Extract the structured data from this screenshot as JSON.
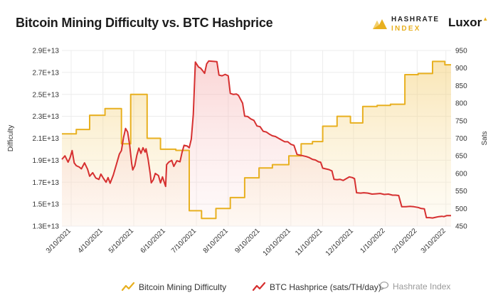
{
  "header": {
    "title": "Bitcoin Mining Difficulty vs. BTC Hashprice",
    "logo_hashrate_line1": "HASHRATE",
    "logo_hashrate_line2": "INDEX",
    "logo_luxor": "Luxor"
  },
  "watermark": "Hashrate Index",
  "chart_data": {
    "type": "line",
    "grid": true,
    "legend_position": "bottom",
    "x_tick_labels": [
      "3/10/2021",
      "4/10/2021",
      "5/10/2021",
      "6/10/2021",
      "7/10/2021",
      "8/10/2021",
      "9/10/2021",
      "10/10/2021",
      "11/10/2021",
      "12/10/2021",
      "1/10/2022",
      "2/10/2022",
      "3/10/2022"
    ],
    "y_left": {
      "label": "Difficulty",
      "ticks": [
        "1.3E+13",
        "1.5E+13",
        "1.7E+13",
        "1.9E+13",
        "2.1E+13",
        "2.3E+13",
        "2.5E+13",
        "2.7E+13",
        "2.9E+13"
      ],
      "range": [
        13000000000000.0,
        29000000000000.0
      ]
    },
    "y_right": {
      "label": "Sats",
      "ticks": [
        "450",
        "500",
        "550",
        "600",
        "650",
        "700",
        "750",
        "800",
        "850",
        "900",
        "950"
      ],
      "range": [
        450,
        950
      ]
    },
    "series": [
      {
        "name": "Bitcoin Mining Difficulty",
        "axis": "left",
        "color": "#e8b020",
        "step": true,
        "points": [
          [
            "3/1/2021",
            21400000000000.0
          ],
          [
            "3/10/2021",
            21400000000000.0
          ],
          [
            "3/15/2021",
            21800000000000.0
          ],
          [
            "3/28/2021",
            23100000000000.0
          ],
          [
            "4/12/2021",
            23700000000000.0
          ],
          [
            "4/28/2021",
            20500000000000.0
          ],
          [
            "5/7/2021",
            25000000000000.0
          ],
          [
            "5/23/2021",
            21000000000000.0
          ],
          [
            "6/5/2021",
            20000000000000.0
          ],
          [
            "6/20/2021",
            19900000000000.0
          ],
          [
            "7/3/2021",
            14400000000000.0
          ],
          [
            "7/15/2021",
            13700000000000.0
          ],
          [
            "7/29/2021",
            14600000000000.0
          ],
          [
            "8/12/2021",
            15600000000000.0
          ],
          [
            "8/26/2021",
            17400000000000.0
          ],
          [
            "9/9/2021",
            18300000000000.0
          ],
          [
            "9/22/2021",
            18600000000000.0
          ],
          [
            "10/8/2021",
            19400000000000.0
          ],
          [
            "10/20/2021",
            20500000000000.0
          ],
          [
            "10/31/2021",
            20700000000000.0
          ],
          [
            "11/10/2021",
            22100000000000.0
          ],
          [
            "11/24/2021",
            23000000000000.0
          ],
          [
            "12/7/2021",
            22400000000000.0
          ],
          [
            "12/19/2021",
            23900000000000.0
          ],
          [
            "1/2/2022",
            24000000000000.0
          ],
          [
            "1/15/2022",
            24100000000000.0
          ],
          [
            "1/29/2022",
            26800000000000.0
          ],
          [
            "2/11/2022",
            26900000000000.0
          ],
          [
            "2/25/2022",
            28000000000000.0
          ],
          [
            "3/9/2022",
            27700000000000.0
          ],
          [
            "3/15/2022",
            27700000000000.0
          ]
        ]
      },
      {
        "name": "BTC Hashprice (sats/TH/day)",
        "axis": "right",
        "color": "#d63030",
        "step": false,
        "points": [
          [
            "3/1/2021",
            640
          ],
          [
            "3/4/2021",
            650
          ],
          [
            "3/7/2021",
            632
          ],
          [
            "3/9/2021",
            645
          ],
          [
            "3/11/2021",
            665
          ],
          [
            "3/13/2021",
            630
          ],
          [
            "3/15/2021",
            622
          ],
          [
            "3/18/2021",
            618
          ],
          [
            "3/20/2021",
            613
          ],
          [
            "3/23/2021",
            630
          ],
          [
            "3/26/2021",
            612
          ],
          [
            "3/28/2021",
            592
          ],
          [
            "3/31/2021",
            602
          ],
          [
            "4/3/2021",
            587
          ],
          [
            "4/6/2021",
            583
          ],
          [
            "4/8/2021",
            598
          ],
          [
            "4/10/2021",
            588
          ],
          [
            "4/13/2021",
            575
          ],
          [
            "4/15/2021",
            588
          ],
          [
            "4/17/2021",
            572
          ],
          [
            "4/20/2021",
            595
          ],
          [
            "4/23/2021",
            625
          ],
          [
            "4/26/2021",
            655
          ],
          [
            "4/28/2021",
            665
          ],
          [
            "4/30/2021",
            702
          ],
          [
            "5/2/2021",
            728
          ],
          [
            "5/4/2021",
            718
          ],
          [
            "5/6/2021",
            680
          ],
          [
            "5/8/2021",
            628
          ],
          [
            "5/9/2021",
            610
          ],
          [
            "5/11/2021",
            622
          ],
          [
            "5/13/2021",
            652
          ],
          [
            "5/15/2021",
            672
          ],
          [
            "5/17/2021",
            657
          ],
          [
            "5/19/2021",
            673
          ],
          [
            "5/21/2021",
            661
          ],
          [
            "5/22/2021",
            670
          ],
          [
            "5/24/2021",
            640
          ],
          [
            "5/26/2021",
            600
          ],
          [
            "5/27/2021",
            573
          ],
          [
            "5/29/2021",
            582
          ],
          [
            "5/31/2021",
            600
          ],
          [
            "6/3/2021",
            594
          ],
          [
            "6/5/2021",
            573
          ],
          [
            "6/7/2021",
            590
          ],
          [
            "6/10/2021",
            563
          ],
          [
            "6/11/2021",
            625
          ],
          [
            "6/13/2021",
            632
          ],
          [
            "6/16/2021",
            637
          ],
          [
            "6/18/2021",
            620
          ],
          [
            "6/21/2021",
            636
          ],
          [
            "6/24/2021",
            633
          ],
          [
            "6/26/2021",
            660
          ],
          [
            "6/28/2021",
            680
          ],
          [
            "7/1/2021",
            678
          ],
          [
            "7/3/2021",
            673
          ],
          [
            "7/5/2021",
            698
          ],
          [
            "7/7/2021",
            768
          ],
          [
            "7/9/2021",
            917
          ],
          [
            "7/12/2021",
            903
          ],
          [
            "7/14/2021",
            900
          ],
          [
            "7/16/2021",
            893
          ],
          [
            "7/18/2021",
            885
          ],
          [
            "7/20/2021",
            912
          ],
          [
            "7/22/2021",
            920
          ],
          [
            "7/26/2021",
            919
          ],
          [
            "7/30/2021",
            918
          ],
          [
            "8/1/2021",
            880
          ],
          [
            "8/4/2021",
            878
          ],
          [
            "8/7/2021",
            882
          ],
          [
            "8/10/2021",
            878
          ],
          [
            "8/12/2021",
            828
          ],
          [
            "8/15/2021",
            825
          ],
          [
            "8/18/2021",
            826
          ],
          [
            "8/20/2021",
            822
          ],
          [
            "8/24/2021",
            800
          ],
          [
            "8/26/2021",
            763
          ],
          [
            "8/29/2021",
            762
          ],
          [
            "9/1/2021",
            755
          ],
          [
            "9/4/2021",
            751
          ],
          [
            "9/7/2021",
            735
          ],
          [
            "9/10/2021",
            733
          ],
          [
            "9/13/2021",
            720
          ],
          [
            "9/16/2021",
            718
          ],
          [
            "9/19/2021",
            712
          ],
          [
            "9/22/2021",
            707
          ],
          [
            "9/25/2021",
            705
          ],
          [
            "9/28/2021",
            700
          ],
          [
            "10/1/2021",
            695
          ],
          [
            "10/4/2021",
            690
          ],
          [
            "10/7/2021",
            690
          ],
          [
            "10/10/2021",
            683
          ],
          [
            "10/13/2021",
            680
          ],
          [
            "10/16/2021",
            654
          ],
          [
            "10/19/2021",
            652
          ],
          [
            "10/22/2021",
            650
          ],
          [
            "10/25/2021",
            648
          ],
          [
            "10/28/2021",
            645
          ],
          [
            "10/31/2021",
            640
          ],
          [
            "11/3/2021",
            638
          ],
          [
            "11/6/2021",
            633
          ],
          [
            "11/8/2021",
            632
          ],
          [
            "11/10/2021",
            615
          ],
          [
            "11/13/2021",
            613
          ],
          [
            "11/16/2021",
            611
          ],
          [
            "11/19/2021",
            607
          ],
          [
            "11/21/2021",
            583
          ],
          [
            "11/24/2021",
            582
          ],
          [
            "11/27/2021",
            583
          ],
          [
            "11/30/2021",
            580
          ],
          [
            "12/3/2021",
            585
          ],
          [
            "12/6/2021",
            590
          ],
          [
            "12/9/2021",
            588
          ],
          [
            "12/11/2021",
            585
          ],
          [
            "12/13/2021",
            545
          ],
          [
            "12/17/2021",
            544
          ],
          [
            "12/20/2021",
            545
          ],
          [
            "12/24/2021",
            544
          ],
          [
            "12/28/2021",
            541
          ],
          [
            "1/1/2022",
            542
          ],
          [
            "1/5/2022",
            543
          ],
          [
            "1/9/2022",
            540
          ],
          [
            "1/13/2022",
            541
          ],
          [
            "1/17/2022",
            538
          ],
          [
            "1/20/2022",
            538
          ],
          [
            "1/23/2022",
            537
          ],
          [
            "1/26/2022",
            505
          ],
          [
            "1/30/2022",
            505
          ],
          [
            "2/3/2022",
            506
          ],
          [
            "2/7/2022",
            505
          ],
          [
            "2/11/2022",
            503
          ],
          [
            "2/14/2022",
            500
          ],
          [
            "2/17/2022",
            499
          ],
          [
            "2/19/2022",
            474
          ],
          [
            "2/22/2022",
            474
          ],
          [
            "2/25/2022",
            473
          ],
          [
            "2/28/2022",
            475
          ],
          [
            "3/3/2022",
            477
          ],
          [
            "3/6/2022",
            478
          ],
          [
            "3/8/2022",
            477
          ],
          [
            "3/11/2022",
            480
          ],
          [
            "3/15/2022",
            480
          ]
        ]
      }
    ]
  }
}
